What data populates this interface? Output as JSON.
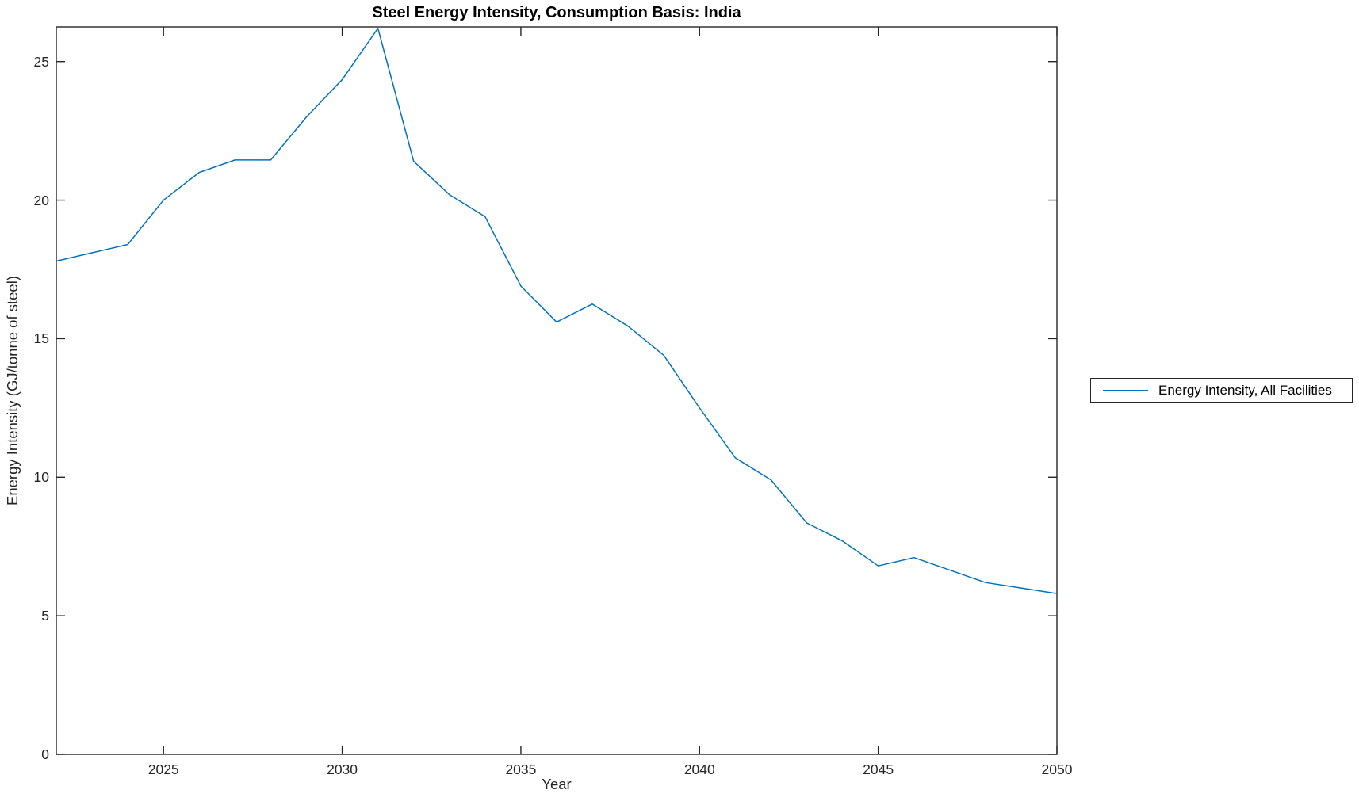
{
  "chart_data": {
    "type": "line",
    "title": "Steel Energy Intensity, Consumption Basis: India",
    "xlabel": "Year",
    "ylabel": "Energy Intensity (GJ/tonne of steel)",
    "x": [
      2022,
      2023,
      2024,
      2025,
      2026,
      2027,
      2028,
      2029,
      2030,
      2031,
      2032,
      2033,
      2034,
      2035,
      2036,
      2037,
      2038,
      2039,
      2040,
      2041,
      2042,
      2043,
      2044,
      2045,
      2046,
      2047,
      2048,
      2049,
      2050
    ],
    "series": [
      {
        "name": "Energy Intensity, All Facilities",
        "values": [
          17.8,
          18.1,
          18.4,
          20.0,
          21.0,
          21.45,
          21.45,
          23.0,
          24.35,
          26.2,
          21.4,
          20.2,
          19.4,
          16.9,
          15.6,
          16.25,
          15.45,
          14.4,
          12.5,
          10.7,
          9.9,
          8.35,
          7.7,
          6.8,
          7.1,
          6.65,
          6.2,
          6.0,
          5.8
        ]
      }
    ],
    "xlim": [
      2022,
      2050
    ],
    "ylim": [
      0,
      26.25
    ],
    "x_ticks": [
      2025,
      2030,
      2035,
      2040,
      2045,
      2050
    ],
    "y_ticks": [
      0,
      5,
      10,
      15,
      20,
      25
    ],
    "grid": false,
    "legend_position": "outside-right",
    "colors": {
      "line": "#0072BD",
      "axis": "#262626",
      "tick_text": "#262626",
      "title_text": "#000000",
      "background": "#ffffff"
    }
  }
}
